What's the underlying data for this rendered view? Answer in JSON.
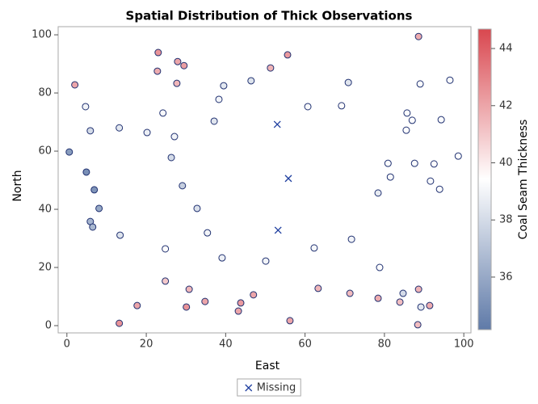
{
  "chart_data": {
    "type": "scatter",
    "title": "Spatial Distribution of Thick Observations",
    "x_label": "East",
    "y_label": "North",
    "xlim": [
      -2.2,
      101.8
    ],
    "xticks": [
      0,
      20,
      40,
      60,
      80,
      100
    ],
    "ylim": [
      -2.5,
      102.8
    ],
    "yticks": [
      0,
      20,
      40,
      60,
      80,
      100
    ],
    "legend_position": "bottom",
    "colorbar": {
      "label": "Coal Seam Thickness",
      "lim": [
        34.16,
        44.68
      ],
      "ticks": [
        36,
        38,
        40,
        42,
        44
      ],
      "colors": [
        "#5f7aa8",
        "#ffffff",
        "#d9474f"
      ]
    },
    "series": [
      {
        "x": [
          0.6,
          2.0,
          4.7,
          4.9,
          5.9,
          6.9,
          8.1,
          5.9,
          6.5,
          13.2,
          13.4,
          13.2,
          17.7,
          20.2,
          23.0,
          22.8,
          24.2,
          24.8,
          24.8,
          26.3,
          27.1,
          27.9,
          27.7,
          29.5,
          29.1,
          30.1,
          30.8,
          32.8,
          34.8,
          35.4,
          37.1,
          38.3,
          39.1,
          39.5,
          43.2,
          43.8,
          46.4,
          47.0,
          50.1,
          51.3,
          55.6,
          56.2,
          60.7,
          62.3,
          63.3,
          69.2,
          70.9,
          71.7,
          71.3,
          78.4,
          78.8,
          78.4,
          80.9,
          81.5,
          83.9,
          84.7,
          85.7,
          85.5,
          87.0,
          87.6,
          88.6,
          89.0,
          88.6,
          89.2,
          88.4,
          91.4,
          91.6,
          92.5,
          93.9,
          94.3,
          96.5,
          98.6
        ],
        "y": [
          59.7,
          82.8,
          75.3,
          52.8,
          67.0,
          46.7,
          40.3,
          35.8,
          33.9,
          68.0,
          31.1,
          0.8,
          6.9,
          66.4,
          93.9,
          87.5,
          73.1,
          26.4,
          15.3,
          57.8,
          65.0,
          90.8,
          83.3,
          89.4,
          48.1,
          6.4,
          12.5,
          40.3,
          8.3,
          31.9,
          70.3,
          77.8,
          23.3,
          82.5,
          5.0,
          7.8,
          84.2,
          10.6,
          22.2,
          88.6,
          93.1,
          1.7,
          75.3,
          26.7,
          12.8,
          75.6,
          83.6,
          29.7,
          11.1,
          45.6,
          20.0,
          9.4,
          55.8,
          51.1,
          8.1,
          11.1,
          73.1,
          67.2,
          70.6,
          55.8,
          99.4,
          83.1,
          12.5,
          6.4,
          0.3,
          6.9,
          49.7,
          55.6,
          46.9,
          70.8,
          84.4,
          58.3
        ],
        "thickness": [
          35.5,
          42,
          39,
          35,
          38,
          35.2,
          36,
          36.5,
          36.6,
          38.5,
          38.3,
          42.5,
          42,
          38.8,
          42.5,
          41.8,
          39.2,
          39.5,
          41,
          38,
          39,
          42,
          41.5,
          42.2,
          37.5,
          42.5,
          41.5,
          38.2,
          42,
          39,
          38.4,
          39,
          38.8,
          38.5,
          42,
          42.3,
          38.3,
          42,
          39,
          41.6,
          42.3,
          42,
          39.2,
          39.1,
          41.5,
          39.5,
          38.4,
          39,
          41.4,
          38.6,
          39.4,
          41.8,
          39.3,
          39.2,
          41.3,
          38,
          39.3,
          39.4,
          39.4,
          39.3,
          41.8,
          39.3,
          41.6,
          38.5,
          41.3,
          41.8,
          39.2,
          39.5,
          39.4,
          39.3,
          39.3,
          39.4
        ]
      },
      {
        "name": "Missing",
        "color": "#1f3f9f",
        "marker": "x",
        "x": [
          53.0,
          55.8,
          53.2
        ],
        "y": [
          69.2,
          50.6,
          32.8
        ]
      }
    ]
  }
}
